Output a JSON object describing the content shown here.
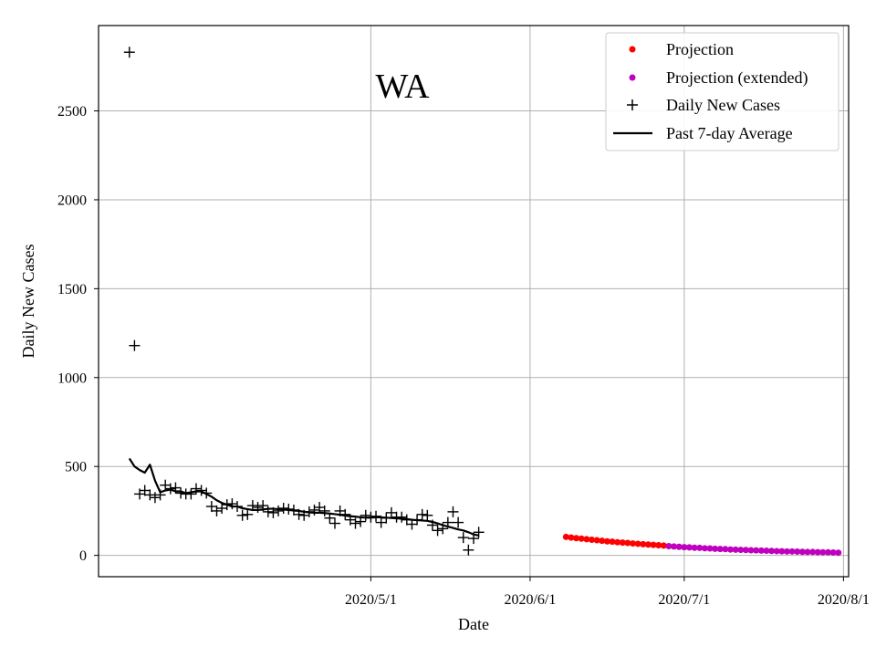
{
  "chart_data": {
    "type": "line",
    "title": "WA",
    "xlabel": "Date",
    "ylabel": "Daily New Cases",
    "xlim": [
      "2020-03-09",
      "2020-08-02"
    ],
    "ylim": [
      -120,
      2980
    ],
    "x_ticks": [
      {
        "date": "2020-05-01",
        "label": "2020/5/1"
      },
      {
        "date": "2020-06-01",
        "label": "2020/6/1"
      },
      {
        "date": "2020-07-01",
        "label": "2020/7/1"
      },
      {
        "date": "2020-08-01",
        "label": "2020/8/1"
      }
    ],
    "y_ticks": [
      0,
      500,
      1000,
      1500,
      2000,
      2500
    ],
    "grid": true,
    "legend_position": "top-right",
    "legend": [
      "Projection",
      "Projection (extended)",
      "Daily New Cases",
      "Past 7-day Average"
    ],
    "colors": {
      "projection": "#ff0000",
      "projection_extended": "#bf00bf",
      "daily": "#000000",
      "average": "#000000"
    },
    "series": [
      {
        "name": "Daily New Cases",
        "marker": "+",
        "start_date": "2020-03-15",
        "values": [
          2830,
          1180,
          345,
          365,
          340,
          325,
          340,
          395,
          375,
          380,
          350,
          345,
          345,
          375,
          365,
          350,
          275,
          250,
          265,
          285,
          290,
          275,
          225,
          230,
          280,
          270,
          280,
          245,
          240,
          250,
          265,
          260,
          255,
          230,
          225,
          245,
          255,
          270,
          250,
          210,
          180,
          250,
          230,
          200,
          180,
          190,
          225,
          215,
          220,
          185,
          210,
          240,
          215,
          215,
          200,
          175,
          200,
          230,
          225,
          170,
          140,
          150,
          185,
          245,
          185,
          100,
          30,
          95,
          130
        ]
      },
      {
        "name": "Past 7-day Average",
        "start_date": "2020-03-15",
        "values": [
          545,
          500,
          480,
          465,
          510,
          420,
          355,
          365,
          370,
          360,
          360,
          350,
          355,
          360,
          360,
          345,
          330,
          310,
          295,
          285,
          275,
          275,
          265,
          260,
          255,
          255,
          258,
          262,
          262,
          260,
          258,
          255,
          252,
          250,
          245,
          242,
          240,
          240,
          238,
          235,
          232,
          228,
          224,
          220,
          218,
          214,
          212,
          212,
          214,
          214,
          212,
          210,
          208,
          206,
          204,
          200,
          198,
          196,
          194,
          188,
          180,
          170,
          162,
          154,
          146,
          140,
          130,
          118,
          112
        ]
      },
      {
        "name": "Projection",
        "start_date": "2020-06-08",
        "values": [
          104,
          100,
          97,
          94,
          91,
          88,
          85,
          82,
          79,
          77,
          74,
          72,
          70,
          67,
          65,
          63,
          61,
          59,
          57,
          55
        ]
      },
      {
        "name": "Projection (extended)",
        "start_date": "2020-06-28",
        "values": [
          52,
          50,
          48,
          46,
          45,
          43,
          42,
          40,
          39,
          37,
          36,
          35,
          33,
          32,
          31,
          30,
          29,
          28,
          27,
          26,
          25,
          24,
          23,
          22,
          22,
          21,
          20,
          19,
          19,
          18,
          17,
          17,
          16,
          15
        ]
      }
    ]
  }
}
